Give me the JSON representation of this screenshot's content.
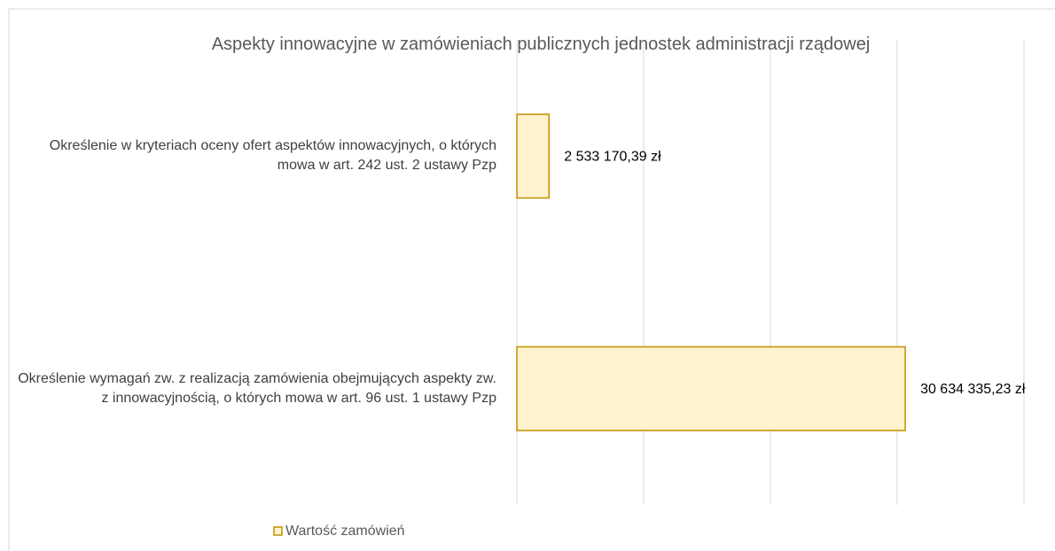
{
  "chart_data": {
    "type": "bar",
    "orientation": "horizontal",
    "title": "Aspekty innowacyjne  w zamówieniach  publicznych jednostek  administracji rządowej",
    "categories": [
      "Określenie w kryteriach oceny ofert aspektów innowacyjnych, o których mowa w art. 242 ust. 2 ustawy Pzp",
      "Określenie wymagań zw. z realizacją zamówienia obejmujących aspekty zw. z innowacyjnością, o których mowa w art. 96 ust. 1 ustawy Pzp"
    ],
    "series": [
      {
        "name": "Wartość zamówień",
        "color": "#fff2cc",
        "edgecolor": "#bf9000",
        "values": [
          2533170.39,
          30634335.23
        ],
        "value_labels": [
          "2 533 170,39 zł",
          "30 634 335,23 zł"
        ]
      }
    ],
    "xlim": [
      0,
      40000000
    ],
    "xticks": [
      0,
      10000000,
      20000000,
      30000000,
      40000000
    ],
    "grid": true,
    "legend": "bottom"
  }
}
